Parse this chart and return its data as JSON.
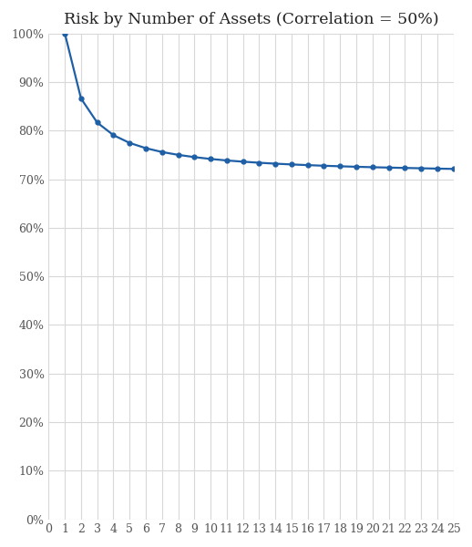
{
  "title": "Risk by Number of Assets (Correlation = 50%)",
  "correlation": 0.5,
  "n_assets": [
    1,
    2,
    3,
    4,
    5,
    6,
    7,
    8,
    9,
    10,
    11,
    12,
    13,
    14,
    15,
    16,
    17,
    18,
    19,
    20,
    21,
    22,
    23,
    24,
    25
  ],
  "y_values": [
    1.0,
    0.866,
    0.8165,
    0.7906,
    0.7746,
    0.7638,
    0.7559,
    0.75,
    0.7454,
    0.7416,
    0.7385,
    0.736,
    0.7338,
    0.7319,
    0.7303,
    0.7289,
    0.7276,
    0.7265,
    0.7255,
    0.7246,
    0.7238,
    0.7231,
    0.7224,
    0.7217,
    0.7211
  ],
  "line_color": "#1f5fa6",
  "marker": "o",
  "marker_size": 3.5,
  "line_width": 1.6,
  "xlim": [
    0,
    25
  ],
  "ylim": [
    0,
    1.0
  ],
  "xticks": [
    0,
    1,
    2,
    3,
    4,
    5,
    6,
    7,
    8,
    9,
    10,
    11,
    12,
    13,
    14,
    15,
    16,
    17,
    18,
    19,
    20,
    21,
    22,
    23,
    24,
    25
  ],
  "yticks": [
    0.0,
    0.1,
    0.2,
    0.3,
    0.4,
    0.5,
    0.6,
    0.7,
    0.8,
    0.9,
    1.0
  ],
  "background_color": "#ffffff",
  "plot_bg_color": "#ffffff",
  "grid_color": "#d8d8d8",
  "title_fontsize": 12.5,
  "tick_fontsize": 9.0,
  "tick_color": "#555555"
}
